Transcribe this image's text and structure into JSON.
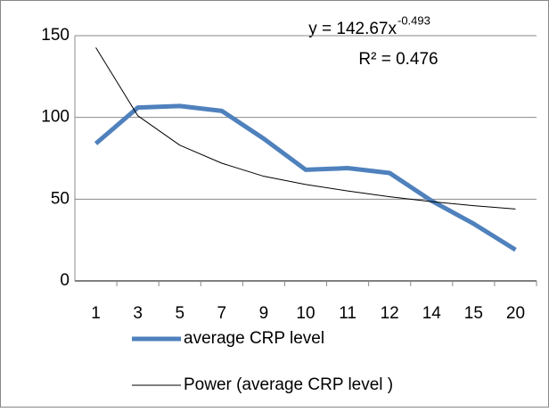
{
  "chart_data": {
    "type": "line",
    "categories": [
      "1",
      "3",
      "5",
      "7",
      "9",
      "10",
      "11",
      "12",
      "14",
      "15",
      "20"
    ],
    "series": [
      {
        "name": "average CRP level",
        "color": "#4f81bd",
        "width": 5,
        "values": [
          84,
          106,
          107,
          104,
          87,
          68,
          69,
          66,
          49,
          35,
          19
        ]
      },
      {
        "name": "Power (average CRP level )",
        "color": "#000000",
        "width": 1,
        "values": [
          142.7,
          101,
          83,
          72,
          64,
          59,
          55,
          51.5,
          48.5,
          46,
          44
        ]
      }
    ],
    "annotations": {
      "equation_base": "y = 142.67x",
      "equation_exponent": "-0.493",
      "r_squared": "R² = 0.476"
    },
    "ylim": [
      0,
      150
    ],
    "yticks": [
      0,
      50,
      100,
      150
    ],
    "grid": true
  }
}
